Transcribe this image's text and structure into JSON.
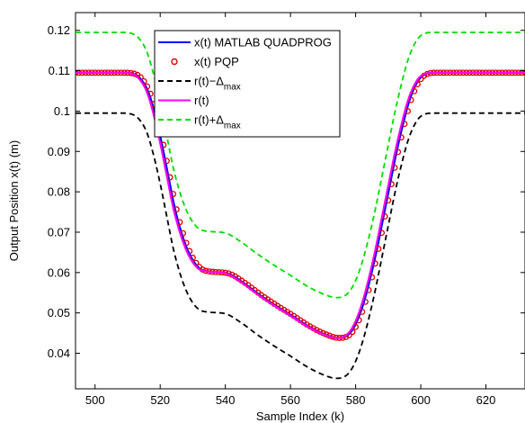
{
  "chart_data": {
    "type": "line",
    "xlabel": "Sample Index (k)",
    "ylabel": "Output Position x(t) (m)",
    "xlim": [
      494,
      632
    ],
    "ylim": [
      0.0312,
      0.1244
    ],
    "xticks": [
      500,
      520,
      540,
      560,
      580,
      600,
      620
    ],
    "yticks": [
      0.04,
      0.05,
      0.06,
      0.07,
      0.08,
      0.09,
      0.1,
      0.11,
      0.12
    ],
    "ytick_labels": [
      "0.04",
      "0.05",
      "0.06",
      "0.07",
      "0.08",
      "0.09",
      "0.1",
      "0.11",
      "0.12"
    ],
    "grid": false,
    "legend_position": "top-center",
    "reference_r": {
      "x": [
        494,
        508,
        512,
        514,
        516,
        518,
        520,
        522,
        524,
        526,
        528,
        530,
        532,
        535,
        540,
        545,
        550,
        555,
        560,
        565,
        570,
        574,
        576,
        578,
        580,
        582,
        584,
        586,
        588,
        590,
        592,
        594,
        596,
        598,
        600,
        604,
        632
      ],
      "y": [
        0.1095,
        0.1095,
        0.109,
        0.1075,
        0.1045,
        0.099,
        0.092,
        0.084,
        0.076,
        0.07,
        0.0655,
        0.0625,
        0.0608,
        0.0602,
        0.0598,
        0.0575,
        0.0545,
        0.0518,
        0.0493,
        0.0467,
        0.0447,
        0.0438,
        0.044,
        0.0452,
        0.048,
        0.0525,
        0.0585,
        0.0655,
        0.0735,
        0.0815,
        0.0895,
        0.0965,
        0.1025,
        0.1065,
        0.1087,
        0.1095,
        0.1095
      ]
    },
    "delta_max": 0.01,
    "pqp_marker_step": 1,
    "pqp_offset": 0.0006,
    "series": [
      {
        "name": "x(t) MATLAB QUADPROG",
        "role": "quadprog",
        "color": "#0000ff",
        "style": "solid"
      },
      {
        "name": "x(t) PQP",
        "role": "pqp",
        "color": "#dd0000",
        "style": "circle-markers"
      },
      {
        "name": "r(t)-Δmax",
        "role": "lower",
        "color": "#000000",
        "style": "dashed",
        "legend_base": "r(t)−Δ",
        "legend_sub": "max"
      },
      {
        "name": "r(t)",
        "role": "reference",
        "color": "#ff00ff",
        "style": "solid"
      },
      {
        "name": "r(t)+Δmax",
        "role": "upper",
        "color": "#00dd00",
        "style": "dashed",
        "legend_base": "r(t)+Δ",
        "legend_sub": "max"
      }
    ]
  }
}
